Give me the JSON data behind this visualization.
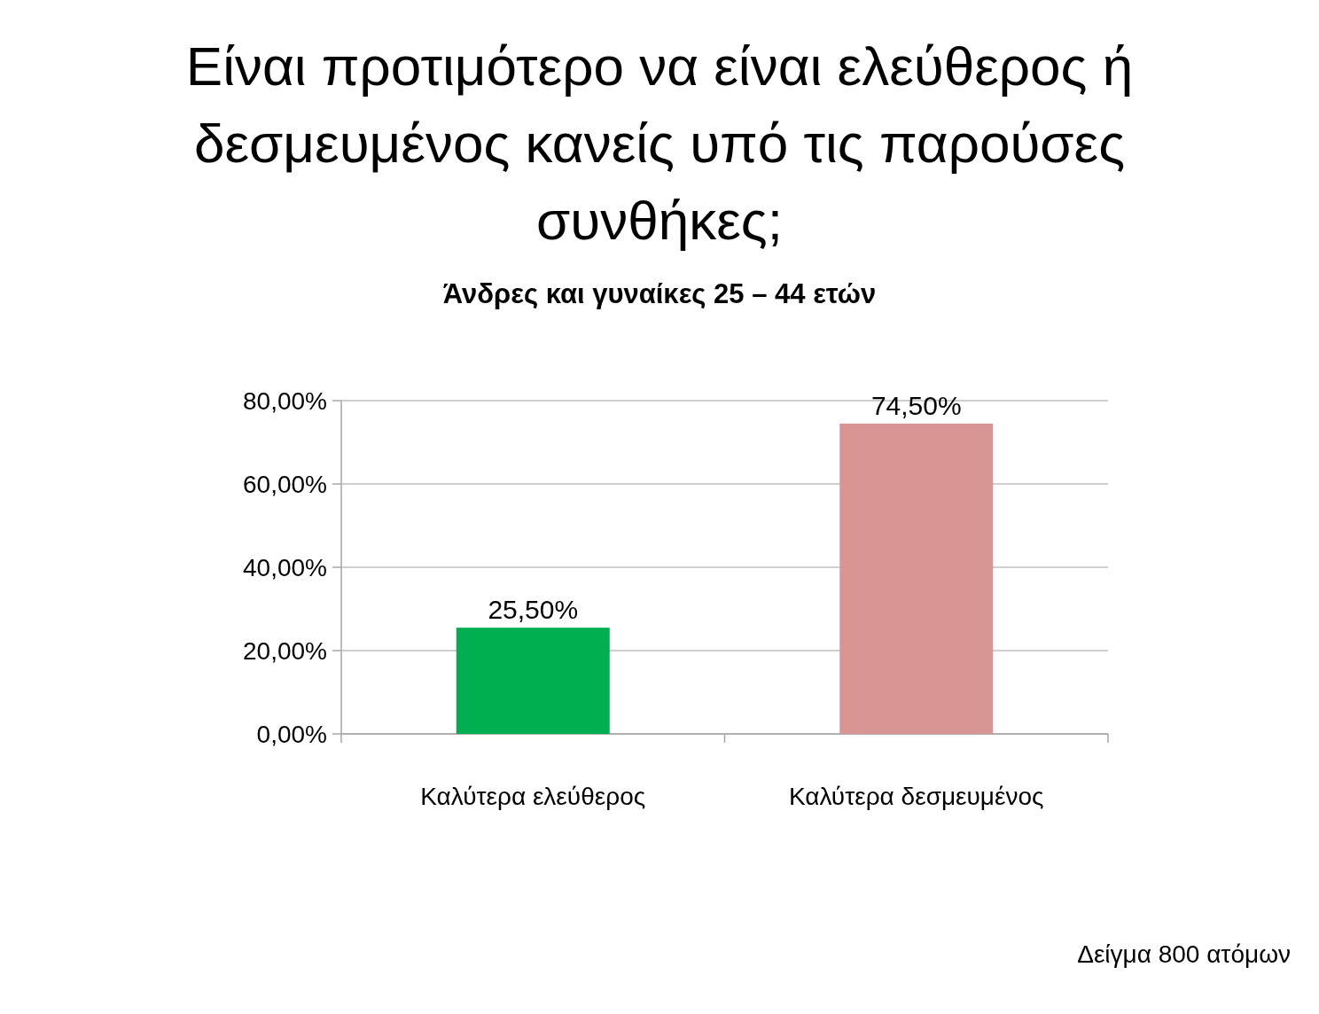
{
  "chart_data": {
    "type": "bar",
    "title": "Είναι προτιμότερο να είναι ελεύθερος ή δεσμευμένος κανείς υπό τις παρούσες συνθήκες;",
    "subtitle": "Άνδρες και γυναίκες 25 – 44 ετών",
    "categories": [
      "Καλύτερα ελεύθερος",
      "Καλύτερα δεσμευμένος"
    ],
    "values": [
      25.5,
      74.5
    ],
    "colors": [
      "#00b050",
      "#d99594"
    ],
    "value_labels": [
      "25,50%",
      "74,50%"
    ],
    "ylim": [
      0,
      80
    ],
    "yticks": [
      {
        "value": 0,
        "label": "0,00%"
      },
      {
        "value": 20,
        "label": "20,00%"
      },
      {
        "value": 40,
        "label": "40,00%"
      },
      {
        "value": 60,
        "label": "60,00%"
      },
      {
        "value": 80,
        "label": "80,00%"
      }
    ],
    "grid": true,
    "annotations": [
      "Δείγμα 800 ατόμων"
    ]
  }
}
